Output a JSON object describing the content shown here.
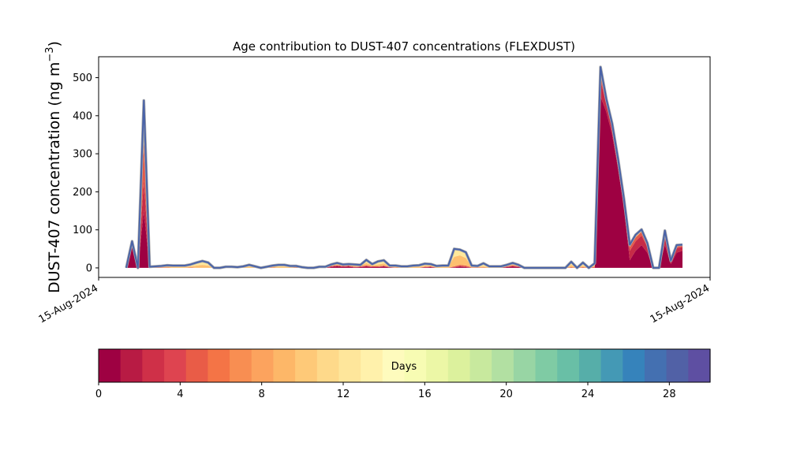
{
  "chart_data": {
    "type": "area",
    "title": "Age contribution to DUST-407 concentrations (FLEXDUST)",
    "ylabel": "DUST-407 concentration (ng m",
    "ylabel_exponent": "−3",
    "ylabel_suffix": ")",
    "ylim": [
      -25,
      555
    ],
    "yticks": [
      0,
      100,
      200,
      300,
      400,
      500
    ],
    "xticks": [
      "15-Aug-2024",
      "15-Aug-2024"
    ],
    "x_range_hours": [
      0,
      360
    ],
    "grid": false,
    "total_series_color": "#4a63a8",
    "series": [
      {
        "values": [
          0,
          60,
          0,
          150,
          0,
          0,
          0,
          0,
          0,
          0,
          0,
          0,
          0,
          0,
          0,
          0,
          0,
          0,
          0,
          0,
          0,
          0,
          0,
          0,
          0,
          0,
          0,
          0,
          0,
          0,
          0,
          0,
          0,
          0,
          0,
          2,
          4,
          2,
          3,
          1,
          2,
          3,
          2,
          2,
          3,
          1,
          0,
          0,
          0,
          0,
          0,
          1,
          2,
          0,
          0,
          0,
          1,
          3,
          2,
          0,
          0,
          0,
          0,
          0,
          0,
          2,
          3,
          2,
          0,
          0,
          0,
          0,
          0,
          0,
          0,
          0,
          0,
          0,
          0,
          0,
          0,
          450,
          410,
          350,
          260,
          160,
          20,
          45,
          60,
          40,
          0,
          0,
          60,
          10,
          40,
          45
        ]
      },
      {
        "values": [
          0,
          10,
          0,
          80,
          0,
          0,
          0,
          0,
          0,
          0,
          0,
          0,
          0,
          0,
          0,
          0,
          0,
          0,
          0,
          0,
          0,
          0,
          0,
          0,
          0,
          0,
          0,
          0,
          0,
          0,
          0,
          0,
          0,
          0,
          0,
          2,
          2,
          2,
          2,
          1,
          1,
          2,
          1,
          1,
          2,
          1,
          0,
          0,
          0,
          0,
          0,
          1,
          1,
          0,
          0,
          0,
          1,
          2,
          1,
          0,
          0,
          0,
          0,
          0,
          0,
          1,
          2,
          1,
          0,
          0,
          0,
          0,
          0,
          0,
          0,
          0,
          0,
          0,
          0,
          0,
          0,
          45,
          20,
          15,
          15,
          15,
          25,
          25,
          25,
          15,
          0,
          0,
          25,
          5,
          12,
          10
        ]
      },
      {
        "values": [
          0,
          0,
          0,
          100,
          1,
          1,
          1,
          1,
          0,
          0,
          0,
          1,
          0,
          0,
          0,
          0,
          0,
          1,
          1,
          0,
          0,
          0,
          0,
          0,
          0,
          1,
          0,
          0,
          0,
          1,
          0,
          0,
          0,
          0,
          0,
          1,
          1,
          1,
          1,
          1,
          1,
          2,
          1,
          1,
          1,
          0,
          1,
          0,
          0,
          0,
          0,
          1,
          1,
          0,
          0,
          0,
          2,
          3,
          3,
          1,
          1,
          1,
          0,
          0,
          0,
          1,
          2,
          1,
          0,
          0,
          0,
          0,
          0,
          0,
          0,
          0,
          2,
          0,
          2,
          0,
          3,
          20,
          8,
          8,
          6,
          4,
          10,
          10,
          10,
          6,
          0,
          0,
          8,
          2,
          5,
          3
        ]
      },
      {
        "values": [
          0,
          0,
          0,
          80,
          1,
          1,
          2,
          3,
          3,
          3,
          3,
          3,
          6,
          8,
          6,
          0,
          0,
          1,
          1,
          1,
          2,
          3,
          2,
          0,
          1,
          2,
          3,
          3,
          2,
          2,
          1,
          0,
          0,
          0,
          1,
          2,
          3,
          2,
          2,
          3,
          2,
          6,
          3,
          5,
          6,
          2,
          2,
          2,
          2,
          3,
          3,
          3,
          3,
          3,
          3,
          3,
          25,
          25,
          20,
          2,
          2,
          3,
          2,
          2,
          2,
          2,
          3,
          2,
          0,
          0,
          0,
          0,
          0,
          0,
          0,
          0,
          6,
          0,
          4,
          0,
          4,
          10,
          4,
          4,
          3,
          2,
          4,
          4,
          4,
          3,
          0,
          0,
          3,
          1,
          2,
          2
        ]
      },
      {
        "values": [
          0,
          0,
          0,
          30,
          1,
          2,
          2,
          3,
          3,
          3,
          3,
          5,
          8,
          10,
          8,
          0,
          0,
          1,
          1,
          1,
          2,
          4,
          2,
          0,
          2,
          3,
          5,
          5,
          3,
          2,
          1,
          0,
          0,
          3,
          2,
          2,
          3,
          2,
          2,
          3,
          2,
          8,
          3,
          8,
          8,
          2,
          3,
          2,
          2,
          3,
          4,
          5,
          3,
          2,
          3,
          3,
          20,
          15,
          15,
          3,
          2,
          7,
          2,
          2,
          2,
          2,
          3,
          2,
          0,
          0,
          0,
          0,
          0,
          0,
          0,
          0,
          8,
          0,
          8,
          0,
          5,
          3,
          2,
          2,
          2,
          1,
          2,
          3,
          2,
          1,
          0,
          0,
          2,
          1,
          1,
          1
        ]
      },
      {
        "values": [
          0,
          0,
          0,
          0,
          0,
          0,
          0,
          0,
          0,
          0,
          0,
          0,
          0,
          0,
          0,
          0,
          0,
          0,
          0,
          0,
          0,
          1,
          0,
          0,
          0,
          0,
          0,
          0,
          0,
          0,
          0,
          0,
          0,
          0,
          0,
          0,
          0,
          0,
          0,
          0,
          0,
          0,
          0,
          0,
          0,
          0,
          0,
          0,
          0,
          0,
          0,
          0,
          0,
          0,
          0,
          0,
          1,
          0,
          0,
          0,
          0,
          1,
          0,
          0,
          0,
          0,
          0,
          0,
          0,
          0,
          0,
          0,
          0,
          0,
          0,
          0,
          0,
          0,
          0,
          0,
          0,
          0,
          0,
          0,
          0,
          0,
          0,
          0,
          0,
          0,
          0,
          0,
          0,
          0,
          0,
          0
        ]
      }
    ],
    "colorbar": {
      "label": "Days",
      "min": 0,
      "max": 30,
      "ticks": [
        0,
        4,
        8,
        12,
        16,
        20,
        24,
        28
      ],
      "colors": [
        "#9e0142",
        "#b81b44",
        "#cf3048",
        "#de4450",
        "#e95c47",
        "#f47446",
        "#f88e52",
        "#fca35e",
        "#fdb768",
        "#fec978",
        "#fed98a",
        "#fee69b",
        "#fff1ab",
        "#fefbbd",
        "#f7fcb3",
        "#ecf7a6",
        "#dcf19d",
        "#c8e99e",
        "#b2e0a2",
        "#98d5a4",
        "#7fcba4",
        "#69bfa6",
        "#56aea9",
        "#4499b5",
        "#3683bb",
        "#4470b1",
        "#5161a6",
        "#5e4fa2"
      ]
    }
  }
}
